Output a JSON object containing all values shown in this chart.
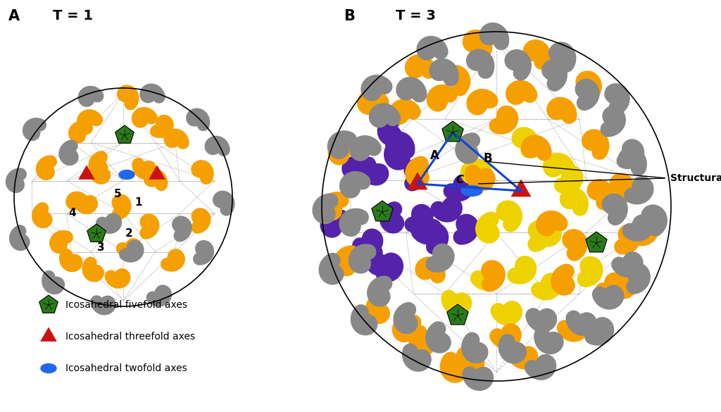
{
  "title_A": "T = 1",
  "title_B": "T = 3",
  "label_A": "A",
  "label_B": "B",
  "structural_unit_label": "Structural unit",
  "legend_fivefold": "Icosahedral fivefold axes",
  "legend_threefold": "Icosahedral threefold axes",
  "legend_twofold": "Icosahedral twofold axes",
  "color_orange": "#F5A000",
  "color_gray": "#888888",
  "color_green": "#2A7A1A",
  "color_red": "#CC1111",
  "color_blue_ellipse": "#2266EE",
  "color_purple": "#5522AA",
  "color_yellow": "#EED200",
  "color_blue_line": "#1144CC",
  "color_dashed": "#AAAAAA",
  "bg_color": "#FFFFFF",
  "fig_width": 10.24,
  "fig_height": 5.85
}
